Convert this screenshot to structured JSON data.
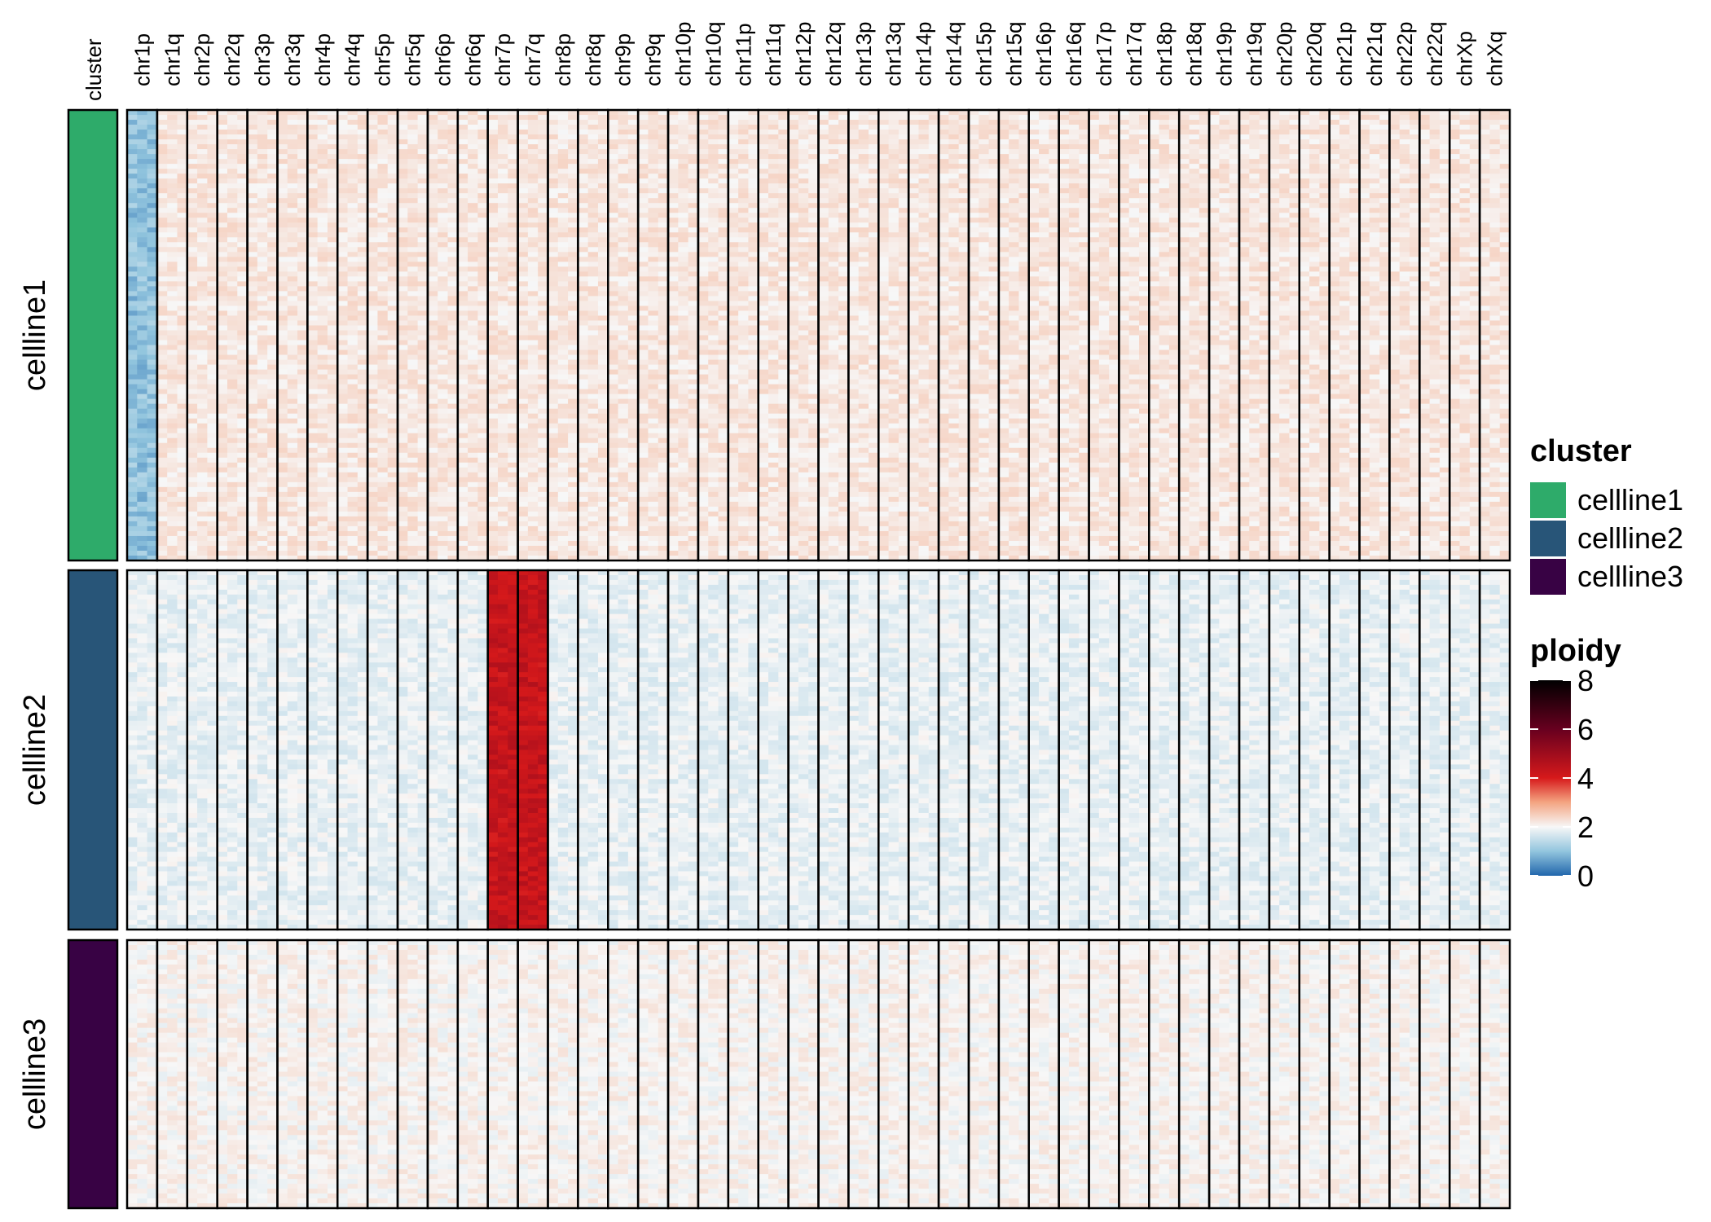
{
  "chart_data": {
    "type": "heatmap",
    "annotation_header": "cluster",
    "columns": [
      "chr1p",
      "chr1q",
      "chr2p",
      "chr2q",
      "chr3p",
      "chr3q",
      "chr4p",
      "chr4q",
      "chr5p",
      "chr5q",
      "chr6p",
      "chr6q",
      "chr7p",
      "chr7q",
      "chr8p",
      "chr8q",
      "chr9p",
      "chr9q",
      "chr10p",
      "chr10q",
      "chr11p",
      "chr11q",
      "chr12p",
      "chr12q",
      "chr13p",
      "chr13q",
      "chr14p",
      "chr14q",
      "chr15p",
      "chr15q",
      "chr16p",
      "chr16q",
      "chr17p",
      "chr17q",
      "chr18p",
      "chr18q",
      "chr19p",
      "chr19q",
      "chr20p",
      "chr20q",
      "chr21p",
      "chr21q",
      "chr22p",
      "chr22q",
      "chrXp",
      "chrXq"
    ],
    "row_groups": [
      {
        "name": "cellline1",
        "color": "#2EAB6A",
        "baseline_ploidy": 2.2,
        "overrides": [
          {
            "column": "chr1p",
            "ploidy": 1.0
          }
        ]
      },
      {
        "name": "cellline2",
        "color": "#285578",
        "baseline_ploidy": 1.85,
        "overrides": [
          {
            "column": "chr7p",
            "ploidy": 4.3
          },
          {
            "column": "chr7q",
            "ploidy": 4.3
          }
        ]
      },
      {
        "name": "cellline3",
        "color": "#380244",
        "baseline_ploidy": 2.05,
        "overrides": []
      }
    ],
    "legends": {
      "cluster": {
        "title": "cluster",
        "entries": [
          {
            "label": "cellline1",
            "color": "#2EAB6A"
          },
          {
            "label": "cellline2",
            "color": "#285578"
          },
          {
            "label": "cellline3",
            "color": "#380244"
          }
        ]
      },
      "ploidy": {
        "title": "ploidy",
        "ticks": [
          0,
          2,
          4,
          6,
          8
        ],
        "range": [
          0,
          8
        ],
        "color_stops": [
          {
            "value": 0,
            "color": "#2166AC"
          },
          {
            "value": 1,
            "color": "#92C5DE"
          },
          {
            "value": 2,
            "color": "#F7F7F7"
          },
          {
            "value": 3,
            "color": "#F4A582"
          },
          {
            "value": 4,
            "color": "#D6191B"
          },
          {
            "value": 6,
            "color": "#67001F"
          },
          {
            "value": 8,
            "color": "#000000"
          }
        ]
      }
    }
  }
}
